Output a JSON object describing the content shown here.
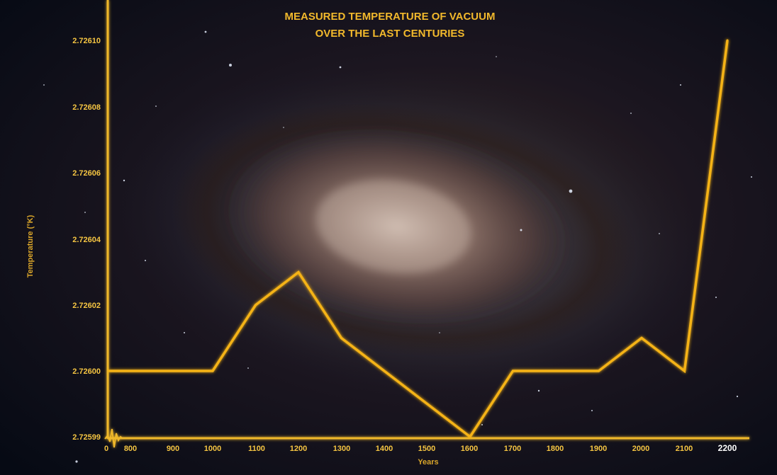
{
  "chart_data": {
    "type": "line",
    "title_lines": [
      "MEASURED TEMPERATURE OF VACUUM",
      "OVER THE LAST CENTURIES"
    ],
    "xlabel": "Years",
    "ylabel": "Temperature (°K)",
    "x_ticks": [
      "0",
      "800",
      "900",
      "1000",
      "1100",
      "1200",
      "1300",
      "1400",
      "1500",
      "1600",
      "1700",
      "1800",
      "1900",
      "2000",
      "2100",
      "2200"
    ],
    "y_ticks": [
      "2.72599",
      "2.72600",
      "2.72602",
      "2.72604",
      "2.72606",
      "2.72608",
      "2.72610"
    ],
    "ylim": [
      2.72599,
      2.7261
    ],
    "series": [
      {
        "x": [
          1000,
          1100,
          1200,
          1300,
          1400,
          1500,
          1600,
          1700,
          1800,
          1900,
          2000,
          2100,
          2200
        ],
        "values": [
          2.726,
          2.72602,
          2.72603,
          2.72601,
          2.726,
          2.725995,
          2.72599,
          2.726,
          2.726,
          2.726,
          2.72601,
          2.726,
          2.7261
        ]
      }
    ],
    "grid": false,
    "legend": "none",
    "colors": {
      "line": "#f5b317",
      "axis": "#f0b82a",
      "text": "#f5c542"
    },
    "background": "galaxy-photo"
  }
}
